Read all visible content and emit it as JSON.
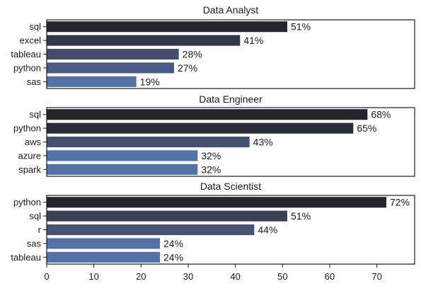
{
  "chart_data": [
    {
      "type": "bar",
      "orientation": "horizontal",
      "title": "Data Analyst",
      "categories": [
        "sql",
        "excel",
        "tableau",
        "python",
        "sas"
      ],
      "values": [
        51,
        41,
        28,
        27,
        19
      ],
      "labels": [
        "51%",
        "41%",
        "28%",
        "27%",
        "19%"
      ],
      "colors": [
        "#24252b",
        "#34394a",
        "#434e6d",
        "#4a5a82",
        "#5572a6"
      ],
      "xlim": [
        0,
        78
      ]
    },
    {
      "type": "bar",
      "orientation": "horizontal",
      "title": "Data Engineer",
      "categories": [
        "sql",
        "python",
        "aws",
        "azure",
        "spark"
      ],
      "values": [
        68,
        65,
        43,
        32,
        32
      ],
      "labels": [
        "68%",
        "65%",
        "43%",
        "32%",
        "32%"
      ],
      "colors": [
        "#24252b",
        "#2a2d36",
        "#454f70",
        "#5472a6",
        "#5472a6"
      ],
      "xlim": [
        0,
        78
      ]
    },
    {
      "type": "bar",
      "orientation": "horizontal",
      "title": "Data Scientist",
      "categories": [
        "python",
        "sql",
        "r",
        "sas",
        "tableau"
      ],
      "values": [
        72,
        51,
        44,
        24,
        24
      ],
      "labels": [
        "72%",
        "51%",
        "44%",
        "24%",
        "24%"
      ],
      "colors": [
        "#24252b",
        "#3a4156",
        "#465270",
        "#5472a6",
        "#5472a6"
      ],
      "xlim": [
        0,
        78
      ],
      "xticks": [
        "0",
        "10",
        "20",
        "30",
        "40",
        "50",
        "60",
        "70"
      ]
    }
  ]
}
